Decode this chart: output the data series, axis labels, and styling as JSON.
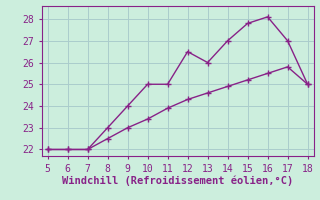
{
  "xlabel": "Windchill (Refroidissement éolien,°C)",
  "x": [
    5,
    6,
    7,
    8,
    9,
    10,
    11,
    12,
    13,
    14,
    15,
    16,
    17,
    18
  ],
  "y_line1": [
    22,
    22,
    22,
    23,
    24,
    25,
    25,
    26.5,
    26,
    27,
    27.8,
    28.1,
    27,
    25
  ],
  "y_line2": [
    22,
    22,
    22,
    22.5,
    23.0,
    23.4,
    23.9,
    24.3,
    24.6,
    24.9,
    25.2,
    25.5,
    25.8,
    25.0
  ],
  "line_color": "#882288",
  "bg_color": "#cceedd",
  "grid_color": "#aacccc",
  "text_color": "#882288",
  "xlim": [
    4.7,
    18.3
  ],
  "ylim": [
    21.7,
    28.6
  ],
  "yticks": [
    22,
    23,
    24,
    25,
    26,
    27,
    28
  ],
  "xticks": [
    5,
    6,
    7,
    8,
    9,
    10,
    11,
    12,
    13,
    14,
    15,
    16,
    17,
    18
  ],
  "marker": "+",
  "markersize": 5,
  "linewidth": 1.0,
  "xlabel_fontsize": 7.5,
  "tick_fontsize": 7
}
